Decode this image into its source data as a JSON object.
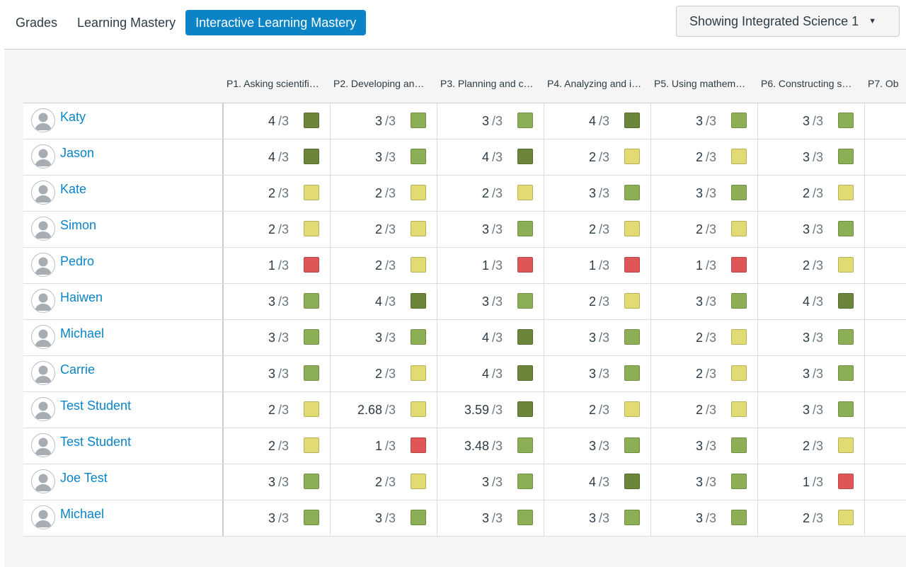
{
  "tabs": [
    {
      "label": "Grades",
      "active": false
    },
    {
      "label": "Learning Mastery",
      "active": false
    },
    {
      "label": "Interactive Learning Mastery",
      "active": true
    }
  ],
  "section_select": {
    "label": "Showing Integrated Science 1"
  },
  "columns": [
    "P1. Asking scientifi…",
    "P2. Developing an…",
    "P3. Planning and c…",
    "P4. Analyzing and i…",
    "P5. Using mathem…",
    "P6. Constructing s…",
    "P7. Ob"
  ],
  "out_of": "/3",
  "mastery_colors": {
    "exceeds": "#6b853a",
    "mastery": "#8cae54",
    "near": "#e2da72",
    "remedial": "#e05656"
  },
  "students": [
    {
      "name": "Katy",
      "scores": [
        {
          "value": "4",
          "level": "exceeds"
        },
        {
          "value": "3",
          "level": "mastery"
        },
        {
          "value": "3",
          "level": "mastery"
        },
        {
          "value": "4",
          "level": "exceeds"
        },
        {
          "value": "3",
          "level": "mastery"
        },
        {
          "value": "3",
          "level": "mastery"
        }
      ]
    },
    {
      "name": "Jason",
      "scores": [
        {
          "value": "4",
          "level": "exceeds"
        },
        {
          "value": "3",
          "level": "mastery"
        },
        {
          "value": "4",
          "level": "exceeds"
        },
        {
          "value": "2",
          "level": "near"
        },
        {
          "value": "2",
          "level": "near"
        },
        {
          "value": "3",
          "level": "mastery"
        }
      ]
    },
    {
      "name": "Kate",
      "scores": [
        {
          "value": "2",
          "level": "near"
        },
        {
          "value": "2",
          "level": "near"
        },
        {
          "value": "2",
          "level": "near"
        },
        {
          "value": "3",
          "level": "mastery"
        },
        {
          "value": "3",
          "level": "mastery"
        },
        {
          "value": "2",
          "level": "near"
        }
      ]
    },
    {
      "name": "Simon",
      "scores": [
        {
          "value": "2",
          "level": "near"
        },
        {
          "value": "2",
          "level": "near"
        },
        {
          "value": "3",
          "level": "mastery"
        },
        {
          "value": "2",
          "level": "near"
        },
        {
          "value": "2",
          "level": "near"
        },
        {
          "value": "3",
          "level": "mastery"
        }
      ]
    },
    {
      "name": "Pedro",
      "scores": [
        {
          "value": "1",
          "level": "remedial"
        },
        {
          "value": "2",
          "level": "near"
        },
        {
          "value": "1",
          "level": "remedial"
        },
        {
          "value": "1",
          "level": "remedial"
        },
        {
          "value": "1",
          "level": "remedial"
        },
        {
          "value": "2",
          "level": "near"
        }
      ]
    },
    {
      "name": "Haiwen",
      "scores": [
        {
          "value": "3",
          "level": "mastery"
        },
        {
          "value": "4",
          "level": "exceeds"
        },
        {
          "value": "3",
          "level": "mastery"
        },
        {
          "value": "2",
          "level": "near"
        },
        {
          "value": "3",
          "level": "mastery"
        },
        {
          "value": "4",
          "level": "exceeds"
        }
      ]
    },
    {
      "name": "Michael",
      "scores": [
        {
          "value": "3",
          "level": "mastery"
        },
        {
          "value": "3",
          "level": "mastery"
        },
        {
          "value": "4",
          "level": "exceeds"
        },
        {
          "value": "3",
          "level": "mastery"
        },
        {
          "value": "2",
          "level": "near"
        },
        {
          "value": "3",
          "level": "mastery"
        }
      ]
    },
    {
      "name": "Carrie",
      "scores": [
        {
          "value": "3",
          "level": "mastery"
        },
        {
          "value": "2",
          "level": "near"
        },
        {
          "value": "4",
          "level": "exceeds"
        },
        {
          "value": "3",
          "level": "mastery"
        },
        {
          "value": "2",
          "level": "near"
        },
        {
          "value": "3",
          "level": "mastery"
        }
      ]
    },
    {
      "name": "Test Student",
      "scores": [
        {
          "value": "2",
          "level": "near"
        },
        {
          "value": "2.68",
          "level": "near"
        },
        {
          "value": "3.59",
          "level": "exceeds"
        },
        {
          "value": "2",
          "level": "near"
        },
        {
          "value": "2",
          "level": "near"
        },
        {
          "value": "3",
          "level": "mastery"
        }
      ]
    },
    {
      "name": "Test Student",
      "scores": [
        {
          "value": "2",
          "level": "near"
        },
        {
          "value": "1",
          "level": "remedial"
        },
        {
          "value": "3.48",
          "level": "mastery"
        },
        {
          "value": "3",
          "level": "mastery"
        },
        {
          "value": "3",
          "level": "mastery"
        },
        {
          "value": "2",
          "level": "near"
        }
      ]
    },
    {
      "name": "Joe Test",
      "scores": [
        {
          "value": "3",
          "level": "mastery"
        },
        {
          "value": "2",
          "level": "near"
        },
        {
          "value": "3",
          "level": "mastery"
        },
        {
          "value": "4",
          "level": "exceeds"
        },
        {
          "value": "3",
          "level": "mastery"
        },
        {
          "value": "1",
          "level": "remedial"
        }
      ]
    },
    {
      "name": "Michael",
      "scores": [
        {
          "value": "3",
          "level": "mastery"
        },
        {
          "value": "3",
          "level": "mastery"
        },
        {
          "value": "3",
          "level": "mastery"
        },
        {
          "value": "3",
          "level": "mastery"
        },
        {
          "value": "3",
          "level": "mastery"
        },
        {
          "value": "2",
          "level": "near"
        }
      ]
    }
  ]
}
